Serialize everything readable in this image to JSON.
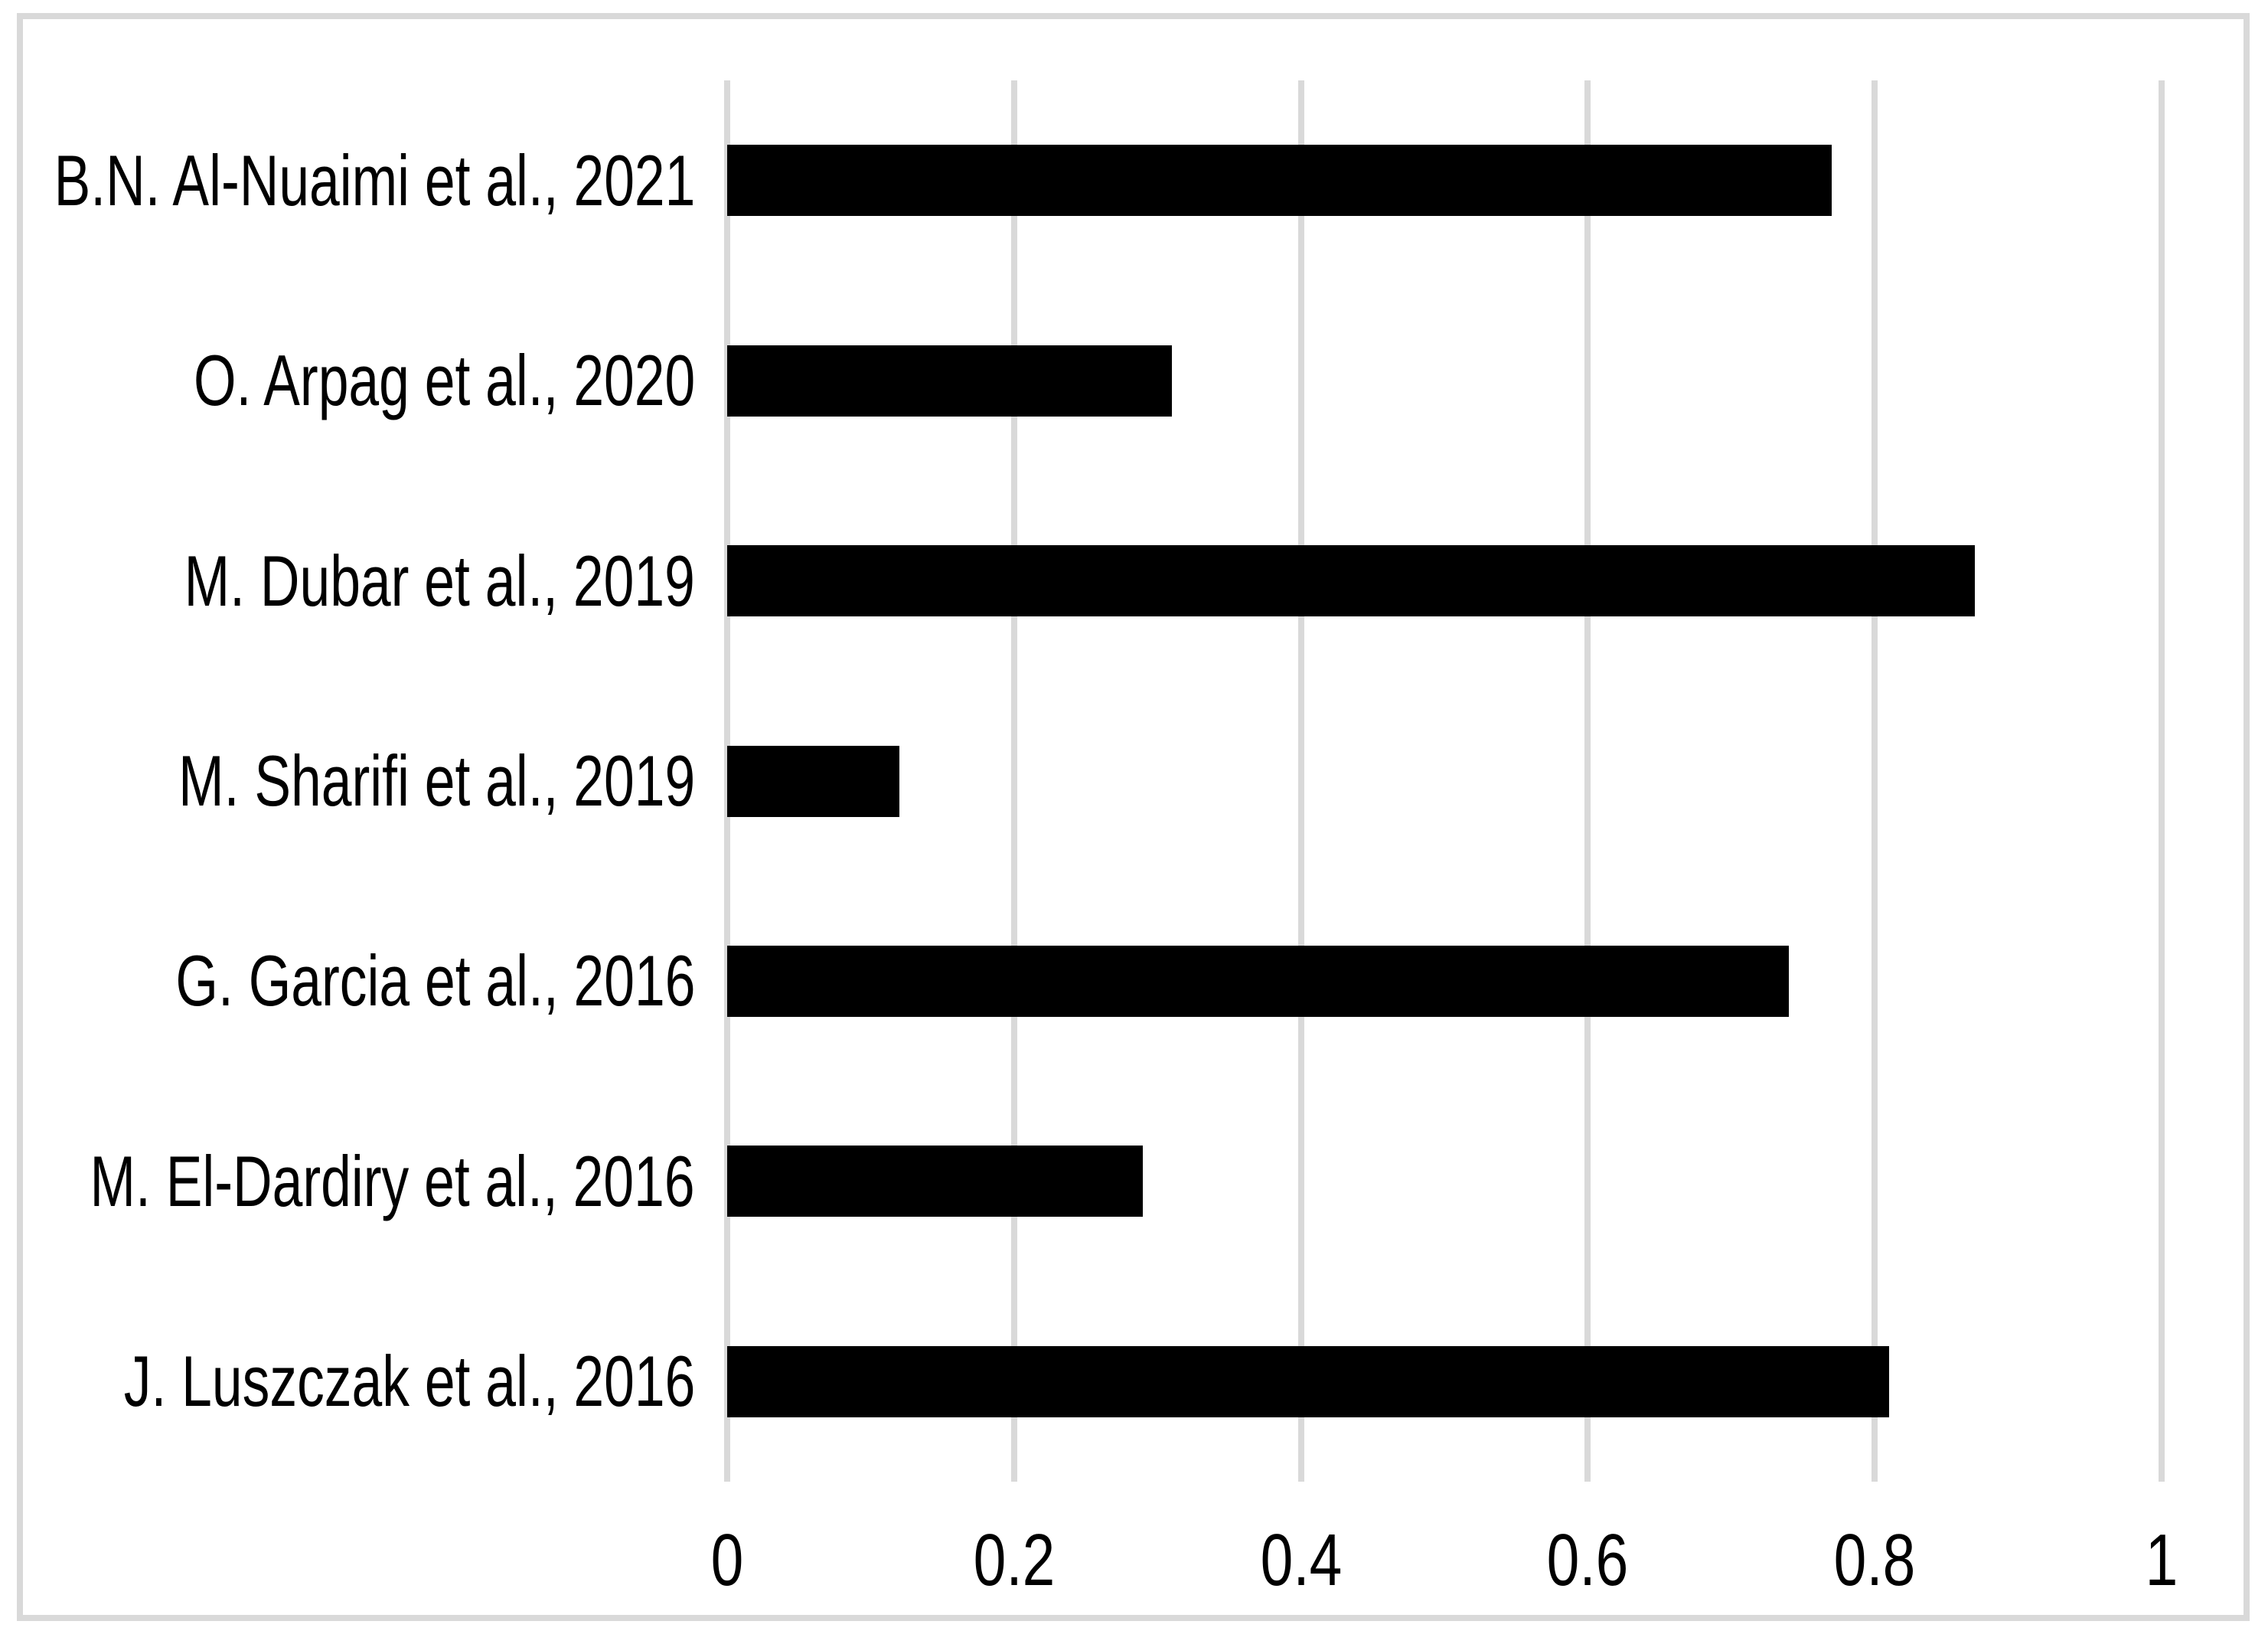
{
  "chart_data": {
    "type": "bar",
    "orientation": "horizontal",
    "title": "",
    "xlabel": "",
    "ylabel": "",
    "categories": [
      "B.N. Al-Nuaimi et al., 2021",
      "O. Arpag et al., 2020",
      "M. Dubar et al., 2019",
      "M. Sharifi et al., 2019",
      "G. Garcia et al., 2016",
      "M. El-Dardiry et al., 2016",
      "J. Luszczak et al., 2016"
    ],
    "values": [
      0.77,
      0.31,
      0.87,
      0.12,
      0.74,
      0.29,
      0.81
    ],
    "xlim": [
      0,
      1
    ],
    "x_ticks": [
      {
        "label": "0",
        "value": 0.0
      },
      {
        "label": "0.2",
        "value": 0.2
      },
      {
        "label": "0.4",
        "value": 0.4
      },
      {
        "label": "0.6",
        "value": 0.6
      },
      {
        "label": "0.8",
        "value": 0.8
      },
      {
        "label": "1",
        "value": 1.0
      }
    ],
    "grid": true,
    "legend": false,
    "colors": {
      "bar": "#000000",
      "gridline": "#d9d9d9",
      "frame_border": "#d9d9d9",
      "background": "#ffffff",
      "text": "#000000"
    }
  }
}
